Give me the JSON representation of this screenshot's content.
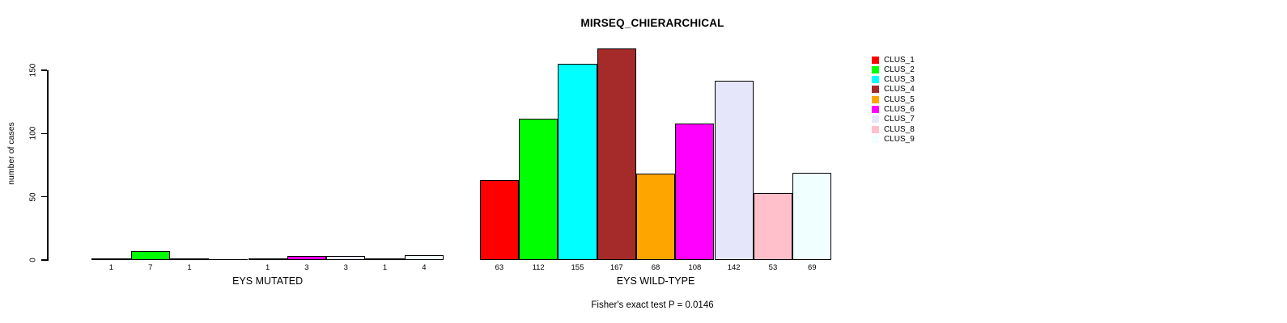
{
  "chart_data": {
    "type": "bar",
    "title": "MIRSEQ_CHIERARCHICAL",
    "ylabel": "number of cases",
    "xlabel": "",
    "yticks": [
      0,
      50,
      100,
      150
    ],
    "ylim": [
      0,
      167
    ],
    "grid": false,
    "legend_position": "right",
    "bar_value_labels": true,
    "categories": [
      "CLUS_1",
      "CLUS_2",
      "CLUS_3",
      "CLUS_4",
      "CLUS_5",
      "CLUS_6",
      "CLUS_7",
      "CLUS_8",
      "CLUS_9"
    ],
    "colors": [
      "#FF0000",
      "#00FF00",
      "#00FFFF",
      "#A52A2A",
      "#FFA500",
      "#FF00FF",
      "#E6E6FA",
      "#FFC0CB",
      "#F0FFFF"
    ],
    "groups": [
      {
        "label": "EYS MUTATED",
        "values": [
          1,
          7,
          1,
          0,
          1,
          3,
          3,
          1,
          4
        ]
      },
      {
        "label": "EYS WILD-TYPE",
        "values": [
          63,
          112,
          155,
          167,
          68,
          108,
          142,
          53,
          69
        ]
      }
    ],
    "annotation": "Fisher's exact test P = 0.0146"
  }
}
